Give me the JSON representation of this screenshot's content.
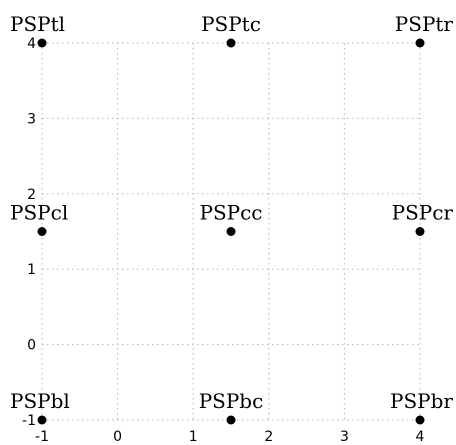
{
  "x_ticks": [
    "-1",
    "0",
    "1",
    "2",
    "3",
    "4"
  ],
  "y_ticks": [
    "-1",
    "0",
    "1",
    "2",
    "3",
    "4"
  ],
  "grid": true,
  "nodes": [
    {
      "label": "PSPtl",
      "x": -1,
      "y": 4
    },
    {
      "label": "PSPtc",
      "x": 1.5,
      "y": 4
    },
    {
      "label": "PSPtr",
      "x": 4,
      "y": 4
    },
    {
      "label": "PSPcl",
      "x": -1,
      "y": 1.5
    },
    {
      "label": "PSPcc",
      "x": 1.5,
      "y": 1.5
    },
    {
      "label": "PSPcr",
      "x": 4,
      "y": 1.5
    },
    {
      "label": "PSPbl",
      "x": -1,
      "y": -1
    },
    {
      "label": "PSPbc",
      "x": 1.5,
      "y": -1
    },
    {
      "label": "PSPbr",
      "x": 4,
      "y": -1
    }
  ],
  "colors": {
    "dot": "#000000",
    "grid": "#b5b5b5",
    "text": "#000000"
  }
}
